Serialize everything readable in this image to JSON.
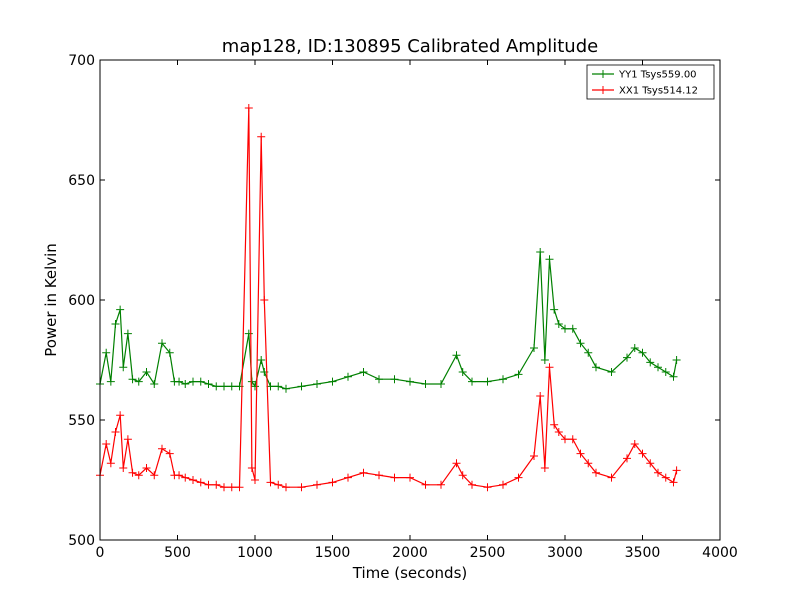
{
  "chart_data": {
    "type": "line",
    "title": "map128, ID:130895 Calibrated Amplitude",
    "xlabel": "Time (seconds)",
    "ylabel": "Power in Kelvin",
    "xlim": [
      0,
      4000
    ],
    "ylim": [
      500,
      700
    ],
    "x_ticks": [
      "0",
      "500",
      "1000",
      "1500",
      "2000",
      "2500",
      "3000",
      "3500",
      "4000"
    ],
    "y_ticks": [
      "500",
      "550",
      "600",
      "650",
      "700"
    ],
    "grid": false,
    "legend_position": "top-right",
    "marker": "+",
    "series": [
      {
        "name": "YY1 Tsys559.00",
        "color": "#008000",
        "x": [
          0,
          40,
          70,
          100,
          130,
          150,
          180,
          210,
          250,
          300,
          350,
          400,
          450,
          480,
          510,
          550,
          600,
          650,
          700,
          750,
          800,
          850,
          900,
          960,
          980,
          1000,
          1040,
          1060,
          1100,
          1150,
          1200,
          1300,
          1400,
          1500,
          1600,
          1700,
          1800,
          1900,
          2000,
          2100,
          2200,
          2300,
          2340,
          2400,
          2500,
          2600,
          2700,
          2800,
          2840,
          2870,
          2900,
          2930,
          2960,
          3000,
          3050,
          3100,
          3150,
          3200,
          3300,
          3400,
          3450,
          3500,
          3550,
          3600,
          3650,
          3700,
          3720
        ],
        "values": [
          565,
          578,
          566,
          590,
          596,
          572,
          586,
          567,
          566,
          570,
          565,
          582,
          578,
          566,
          566,
          565,
          566,
          566,
          565,
          564,
          564,
          564,
          564,
          586,
          566,
          564,
          575,
          570,
          564,
          564,
          563,
          564,
          565,
          566,
          568,
          570,
          567,
          567,
          566,
          565,
          565,
          577,
          570,
          566,
          566,
          567,
          569,
          580,
          620,
          575,
          617,
          596,
          590,
          588,
          588,
          582,
          578,
          572,
          570,
          576,
          580,
          578,
          574,
          572,
          570,
          568,
          575
        ]
      },
      {
        "name": "XX1 Tsys514.12",
        "color": "#ff0000",
        "x": [
          0,
          40,
          70,
          100,
          130,
          150,
          180,
          210,
          250,
          300,
          350,
          400,
          450,
          480,
          510,
          550,
          600,
          650,
          700,
          750,
          800,
          850,
          900,
          960,
          980,
          1000,
          1040,
          1060,
          1100,
          1150,
          1200,
          1300,
          1400,
          1500,
          1600,
          1700,
          1800,
          1900,
          2000,
          2100,
          2200,
          2300,
          2340,
          2400,
          2500,
          2600,
          2700,
          2800,
          2840,
          2870,
          2900,
          2930,
          2960,
          3000,
          3050,
          3100,
          3150,
          3200,
          3300,
          3400,
          3450,
          3500,
          3550,
          3600,
          3650,
          3700,
          3720
        ],
        "values": [
          527,
          540,
          532,
          545,
          552,
          530,
          542,
          528,
          527,
          530,
          527,
          538,
          536,
          527,
          527,
          526,
          525,
          524,
          523,
          523,
          522,
          522,
          522,
          680,
          530,
          525,
          668,
          600,
          524,
          523,
          522,
          522,
          523,
          524,
          526,
          528,
          527,
          526,
          526,
          523,
          523,
          532,
          527,
          523,
          522,
          523,
          526,
          535,
          560,
          530,
          572,
          548,
          545,
          542,
          542,
          536,
          532,
          528,
          526,
          534,
          540,
          536,
          532,
          528,
          526,
          524,
          529
        ]
      }
    ]
  }
}
